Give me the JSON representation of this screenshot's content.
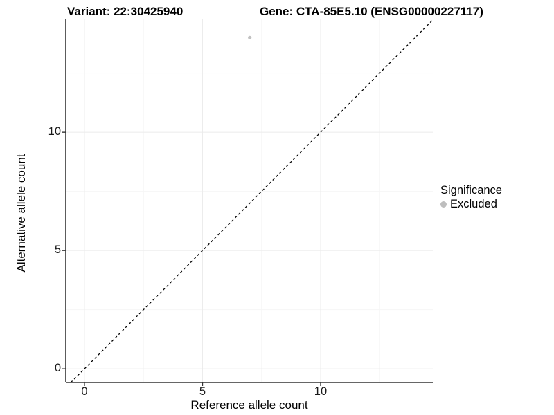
{
  "header": {
    "variant_title": "Variant: 22:30425940",
    "gene_title": "Gene: CTA-85E5.10 (ENSG00000227117)"
  },
  "chart_data": {
    "type": "scatter",
    "xlabel": "Reference allele count",
    "ylabel": "Alternative allele count",
    "xlim": [
      -0.79,
      14.75
    ],
    "ylim": [
      -0.58,
      14.77
    ],
    "x_ticks": [
      0,
      5,
      10
    ],
    "y_ticks": [
      0,
      5,
      10
    ],
    "x_minor_ticks": [
      2.5,
      7.5,
      12.5
    ],
    "y_minor_ticks": [
      2.5,
      7.5,
      12.5
    ],
    "grid": "major+minor",
    "points": [
      {
        "x": 7,
        "y": 14,
        "series": "Excluded"
      }
    ],
    "identity_line": {
      "style": "dashed",
      "slope": 1,
      "intercept": 0
    },
    "legend": {
      "title": "Significance",
      "position": "right",
      "items": [
        {
          "label": "Excluded",
          "color": "#bebebe"
        }
      ]
    }
  },
  "colors": {
    "point": "#c1c1c1",
    "legend_key": "#bebebe",
    "axis_line": "#333333",
    "tick_mark": "#333333",
    "grid_major": "#ebebeb",
    "grid_minor": "#f6f6f6",
    "identity_line": "#000000",
    "background": "#ffffff"
  }
}
